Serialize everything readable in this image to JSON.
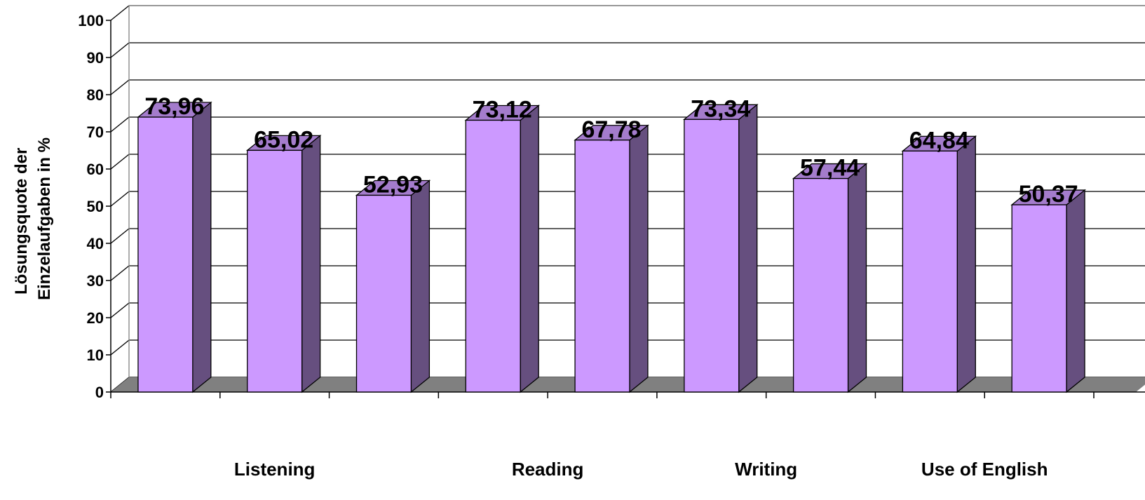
{
  "chart_data": {
    "type": "bar",
    "style": "3d-column",
    "categories": [
      "Listening",
      "Reading",
      "Writing",
      "Use of English"
    ],
    "bars": [
      {
        "category": "Listening",
        "value": 73.96,
        "label": "73,96"
      },
      {
        "category": "Listening",
        "value": 65.02,
        "label": "65,02"
      },
      {
        "category": "Listening",
        "value": 52.93,
        "label": "52,93"
      },
      {
        "category": "Reading",
        "value": 73.12,
        "label": "73,12"
      },
      {
        "category": "Reading",
        "value": 67.78,
        "label": "67,78"
      },
      {
        "category": "Writing",
        "value": 73.34,
        "label": "73,34"
      },
      {
        "category": "Writing",
        "value": 57.44,
        "label": "57,44"
      },
      {
        "category": "Use of English",
        "value": 64.84,
        "label": "64,84"
      },
      {
        "category": "Use of English",
        "value": 50.37,
        "label": "50,37"
      }
    ],
    "ylabel_lines": [
      "Lösungsquote der",
      "Einzelaufgaben in %"
    ],
    "xlabel": "",
    "ylim": [
      0,
      100
    ],
    "yticks": [
      0,
      10,
      20,
      30,
      40,
      50,
      60,
      70,
      80,
      90,
      100
    ],
    "grid": true,
    "legend": "none",
    "colors": {
      "bar_front": "#cc99ff",
      "bar_side": "#664f7f",
      "bar_top": "#a47ccc",
      "floor": "#808080",
      "gridline": "#000000"
    }
  }
}
